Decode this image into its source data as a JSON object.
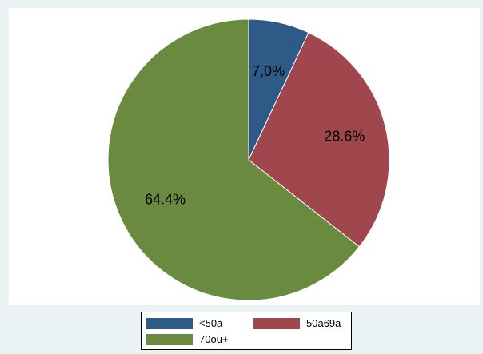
{
  "chart_data": {
    "type": "pie",
    "title": "",
    "slices": [
      {
        "name": "<50a",
        "value": 7.0,
        "label": "7,0%",
        "color": "#2e5a87"
      },
      {
        "name": "50a69a",
        "value": 28.6,
        "label": "28.6%",
        "color": "#a0464d"
      },
      {
        "name": "70ou+",
        "value": 64.4,
        "label": "64.4%",
        "color": "#6a8a40"
      }
    ],
    "start": "12 o'clock",
    "direction": "clockwise",
    "legend_position": "bottom",
    "background_color": "#eaf2f3",
    "plot_background_color": "#ffffff"
  },
  "legend": {
    "items": [
      {
        "label": "<50a",
        "color": "#2e5a87"
      },
      {
        "label": "50a69a",
        "color": "#a0464d"
      },
      {
        "label": "70ou+",
        "color": "#6a8a40"
      }
    ]
  }
}
